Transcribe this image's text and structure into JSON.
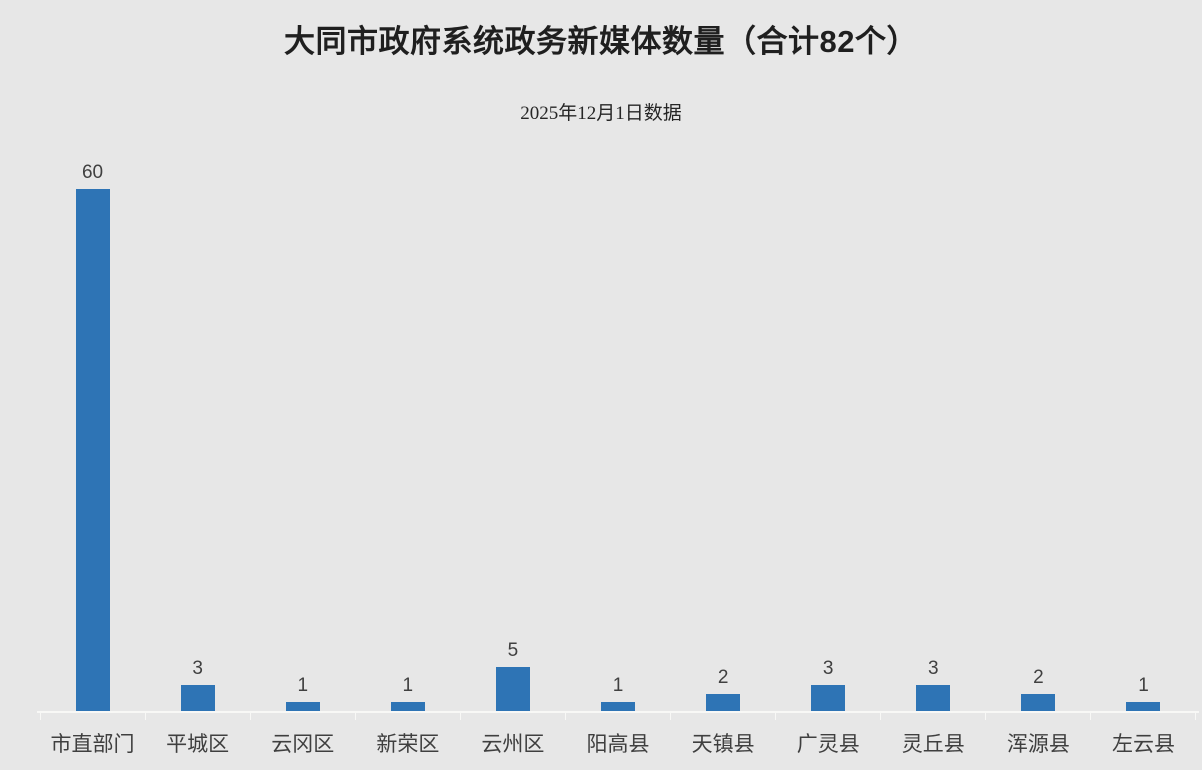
{
  "chart": {
    "title": "大同市政府系统政务新媒体数量（合计82个）",
    "subtitle": "2025年12月1日数据"
  },
  "chart_data": {
    "type": "bar",
    "title": "大同市政府系统政务新媒体数量（合计82个）",
    "subtitle": "2025年12月1日数据",
    "total_label": "合计82个",
    "total": 82,
    "categories": [
      "市直部门",
      "平城区",
      "云冈区",
      "新荣区",
      "云州区",
      "阳高县",
      "天镇县",
      "广灵县",
      "灵丘县",
      "浑源县",
      "左云县"
    ],
    "values": [
      60,
      3,
      1,
      1,
      5,
      1,
      2,
      3,
      3,
      2,
      1
    ],
    "data_labels_shown": true,
    "xlabel": "",
    "ylabel": "",
    "ylim": [
      0,
      62
    ],
    "grid": false,
    "legend": false,
    "bar_color": "#2E74B5",
    "background_color": "#E7E7E7",
    "axis_color": "#F8F8F6",
    "value_label_color": "#404040",
    "category_label_color": "#3F3F3F"
  }
}
